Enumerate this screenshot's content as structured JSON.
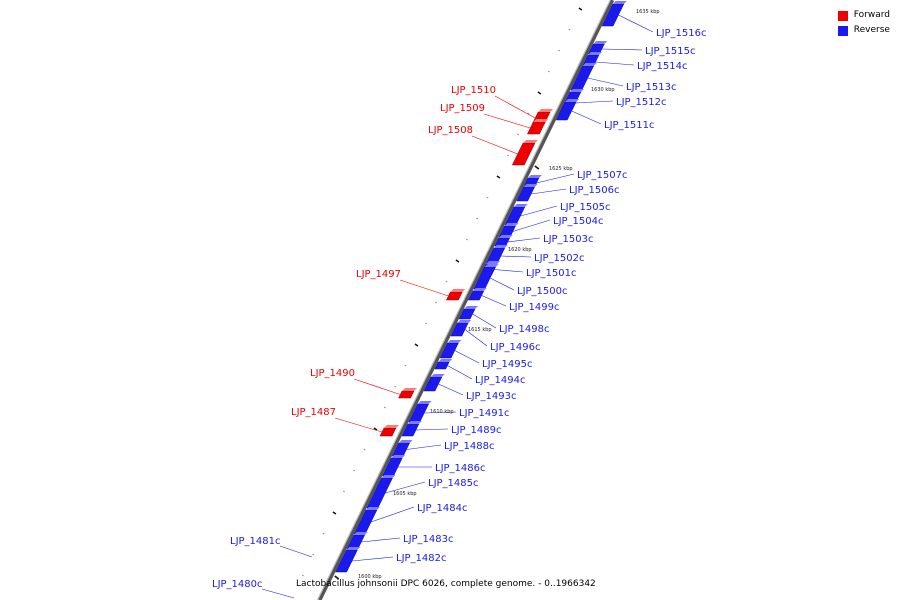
{
  "legend": {
    "forward_label": "Forward",
    "reverse_label": "Reverse",
    "forward_color": "#ee0000",
    "reverse_color": "#1a1aee"
  },
  "caption": "Lactobacillus johnsonii DPC 6026, complete genome. - 0..1966342",
  "ticks": [
    "1635 kbp",
    "1630 kbp",
    "1625 kbp",
    "1620 kbp",
    "1615 kbp",
    "1610 kbp",
    "1605 kbp",
    "1600 kbp"
  ],
  "genes_forward": [
    "LJP_1510",
    "LJP_1509",
    "LJP_1508",
    "LJP_1497",
    "LJP_1490",
    "LJP_1487"
  ],
  "genes_reverse": [
    "LJP_1516c",
    "LJP_1515c",
    "LJP_1514c",
    "LJP_1513c",
    "LJP_1512c",
    "LJP_1511c",
    "LJP_1507c",
    "LJP_1506c",
    "LJP_1505c",
    "LJP_1504c",
    "LJP_1503c",
    "LJP_1502c",
    "LJP_1501c",
    "LJP_1500c",
    "LJP_1499c",
    "LJP_1498c",
    "LJP_1496c",
    "LJP_1495c",
    "LJP_1494c",
    "LJP_1493c",
    "LJP_1491c",
    "LJP_1489c",
    "LJP_1488c",
    "LJP_1486c",
    "LJP_1485c",
    "LJP_1484c",
    "LJP_1483c",
    "LJP_1482c",
    "LJP_1481c",
    "LJP_1480c"
  ]
}
